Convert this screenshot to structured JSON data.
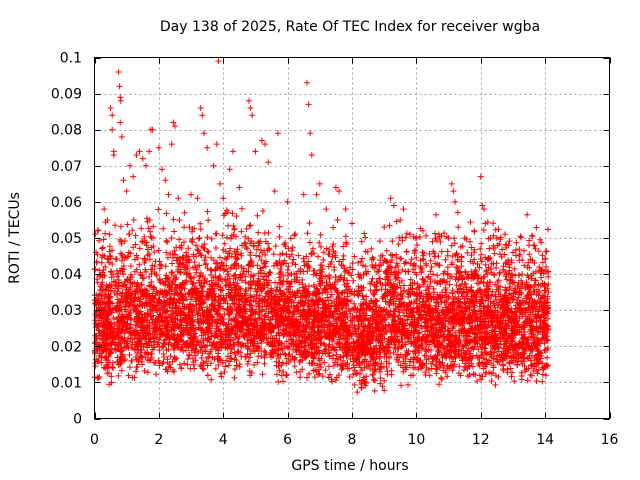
{
  "chart_data": {
    "type": "scatter",
    "title": "Day 138 of 2025, Rate Of TEC Index for receiver wgba",
    "xlabel": "GPS time / hours",
    "ylabel": "ROTI / TECUs",
    "xlim": [
      0,
      16
    ],
    "ylim": [
      0,
      0.1
    ],
    "x_ticks": [
      0,
      2,
      4,
      6,
      8,
      10,
      12,
      14,
      16
    ],
    "y_ticks": [
      0,
      0.01,
      0.02,
      0.03,
      0.04,
      0.05,
      0.06,
      0.07,
      0.08,
      0.09,
      0.1
    ],
    "x_tick_labels": [
      "0",
      "2",
      "4",
      "6",
      "8",
      "10",
      "12",
      "14",
      "16"
    ],
    "y_tick_labels": [
      "0",
      "0.01",
      "0.02",
      "0.03",
      "0.04",
      "0.05",
      "0.06",
      "0.07",
      "0.08",
      "0.09",
      "0.1"
    ],
    "grid": true,
    "marker": "+",
    "series_color": "#ff0000",
    "series": [
      {
        "name": "ROTI",
        "note": "dense band of thousands of samples from ~0.005 to ~0.045 TECU across 0-14.1 h; representative upper points listed",
        "x_range": [
          0,
          14.1
        ],
        "points": [
          [
            0.05,
            0.046
          ],
          [
            0.1,
            0.052
          ],
          [
            0.15,
            0.041
          ],
          [
            0.3,
            0.058
          ],
          [
            0.4,
            0.055
          ],
          [
            0.5,
            0.086
          ],
          [
            0.55,
            0.084
          ],
          [
            0.55,
            0.08
          ],
          [
            0.6,
            0.074
          ],
          [
            0.6,
            0.073
          ],
          [
            0.75,
            0.096
          ],
          [
            0.78,
            0.092
          ],
          [
            0.8,
            0.089
          ],
          [
            0.82,
            0.088
          ],
          [
            0.8,
            0.082
          ],
          [
            0.85,
            0.078
          ],
          [
            0.9,
            0.066
          ],
          [
            1.0,
            0.063
          ],
          [
            1.1,
            0.07
          ],
          [
            1.2,
            0.067
          ],
          [
            1.3,
            0.073
          ],
          [
            1.4,
            0.074
          ],
          [
            1.5,
            0.072
          ],
          [
            1.6,
            0.07
          ],
          [
            1.7,
            0.074
          ],
          [
            1.75,
            0.08
          ],
          [
            1.8,
            0.08
          ],
          [
            2.0,
            0.075
          ],
          [
            2.1,
            0.069
          ],
          [
            2.2,
            0.066
          ],
          [
            2.3,
            0.062
          ],
          [
            2.4,
            0.076
          ],
          [
            2.45,
            0.082
          ],
          [
            2.5,
            0.081
          ],
          [
            2.6,
            0.061
          ],
          [
            2.8,
            0.057
          ],
          [
            3.0,
            0.062
          ],
          [
            3.2,
            0.061
          ],
          [
            3.3,
            0.086
          ],
          [
            3.35,
            0.084
          ],
          [
            3.4,
            0.079
          ],
          [
            3.5,
            0.075
          ],
          [
            3.7,
            0.07
          ],
          [
            3.8,
            0.076
          ],
          [
            3.85,
            0.099
          ],
          [
            3.9,
            0.065
          ],
          [
            4.0,
            0.061
          ],
          [
            4.2,
            0.069
          ],
          [
            4.3,
            0.074
          ],
          [
            4.5,
            0.064
          ],
          [
            4.8,
            0.088
          ],
          [
            4.85,
            0.086
          ],
          [
            4.9,
            0.084
          ],
          [
            5.0,
            0.074
          ],
          [
            5.2,
            0.077
          ],
          [
            5.3,
            0.076
          ],
          [
            5.4,
            0.071
          ],
          [
            5.6,
            0.063
          ],
          [
            5.7,
            0.079
          ],
          [
            6.0,
            0.06
          ],
          [
            6.5,
            0.062
          ],
          [
            6.6,
            0.093
          ],
          [
            6.65,
            0.087
          ],
          [
            6.7,
            0.079
          ],
          [
            6.75,
            0.073
          ],
          [
            6.9,
            0.062
          ],
          [
            7.0,
            0.065
          ],
          [
            7.2,
            0.058
          ],
          [
            7.5,
            0.064
          ],
          [
            7.6,
            0.063
          ],
          [
            7.8,
            0.058
          ],
          [
            8.0,
            0.054
          ],
          [
            8.3,
            0.049
          ],
          [
            8.6,
            0.047
          ],
          [
            8.9,
            0.045
          ],
          [
            9.0,
            0.053
          ],
          [
            9.2,
            0.061
          ],
          [
            9.3,
            0.059
          ],
          [
            9.5,
            0.055
          ],
          [
            9.6,
            0.058
          ],
          [
            9.8,
            0.051
          ],
          [
            10.0,
            0.05
          ],
          [
            10.2,
            0.052
          ],
          [
            10.5,
            0.049
          ],
          [
            10.7,
            0.051
          ],
          [
            11.0,
            0.05
          ],
          [
            11.1,
            0.065
          ],
          [
            11.15,
            0.063
          ],
          [
            11.2,
            0.06
          ],
          [
            11.3,
            0.053
          ],
          [
            11.5,
            0.05
          ],
          [
            11.8,
            0.052
          ],
          [
            12.0,
            0.067
          ],
          [
            12.05,
            0.059
          ],
          [
            12.1,
            0.058
          ],
          [
            12.3,
            0.05
          ],
          [
            12.5,
            0.05
          ],
          [
            12.8,
            0.048
          ],
          [
            13.0,
            0.046
          ],
          [
            13.2,
            0.045
          ],
          [
            13.5,
            0.048
          ],
          [
            13.7,
            0.047
          ],
          [
            13.9,
            0.041
          ],
          [
            14.0,
            0.037
          ],
          [
            14.1,
            0.035
          ]
        ]
      }
    ]
  }
}
